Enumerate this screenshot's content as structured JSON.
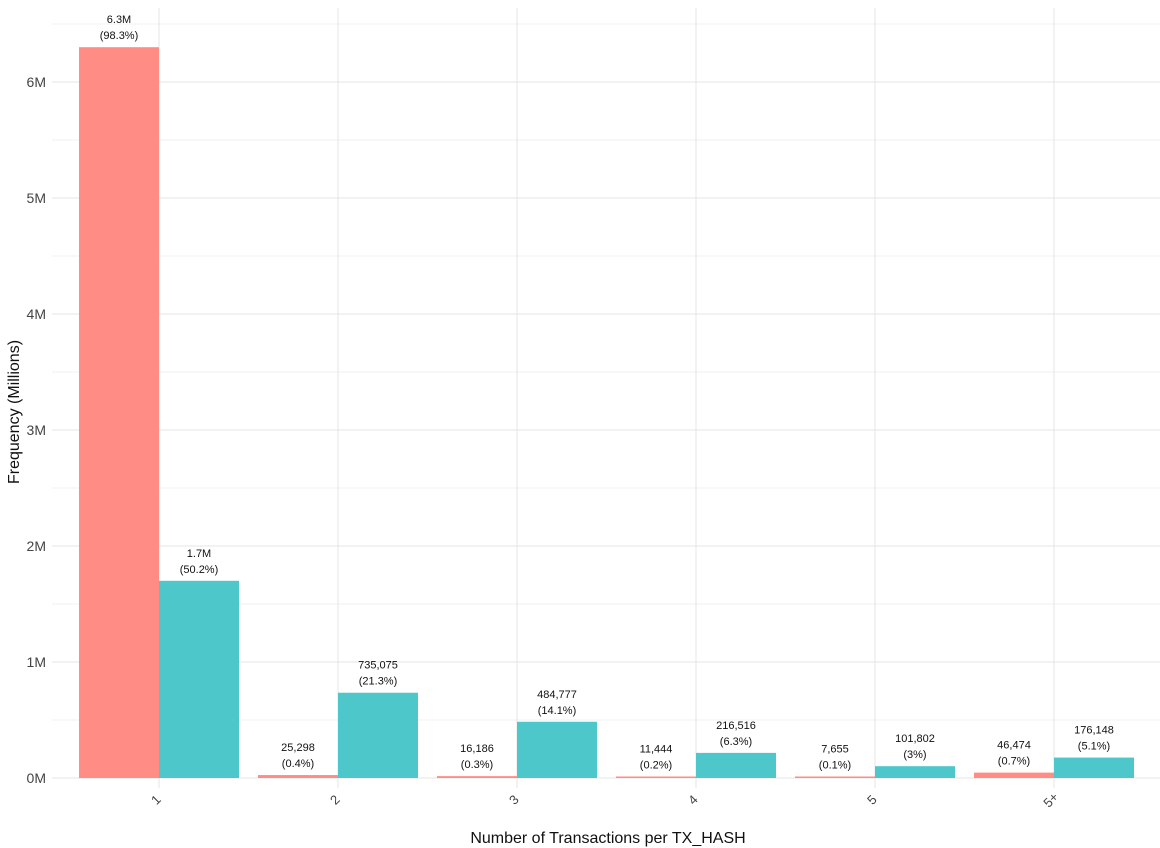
{
  "chart_data": {
    "type": "bar",
    "title": "",
    "xlabel": "Number of Transactions per TX_HASH",
    "ylabel": "Frequency (Millions)",
    "ylim": [
      0,
      6.6
    ],
    "y_ticks": [
      {
        "value": 0,
        "label": "0M"
      },
      {
        "value": 1,
        "label": "1M"
      },
      {
        "value": 2,
        "label": "2M"
      },
      {
        "value": 3,
        "label": "3M"
      },
      {
        "value": 4,
        "label": "4M"
      },
      {
        "value": 5,
        "label": "5M"
      },
      {
        "value": 6,
        "label": "6M"
      }
    ],
    "categories": [
      "1",
      "2",
      "3",
      "4",
      "5",
      "5+"
    ],
    "grid": true,
    "legend": "none",
    "series": [
      {
        "color": "#F8766D",
        "values": [
          6300000,
          25298,
          16186,
          11444,
          7655,
          46474
        ],
        "labels": [
          "6.3M",
          "25,298",
          "16,186",
          "11,444",
          "7,655",
          "46,474"
        ],
        "percents": [
          "(98.3%)",
          "(0.4%)",
          "(0.3%)",
          "(0.2%)",
          "(0.1%)",
          "(0.7%)"
        ]
      },
      {
        "color": "#4EC7CB",
        "values": [
          1700000,
          735075,
          484777,
          216516,
          101802,
          176148
        ],
        "labels": [
          "1.7M",
          "735,075",
          "484,777",
          "216,516",
          "101,802",
          "176,148"
        ],
        "percents": [
          "(50.2%)",
          "(21.3%)",
          "(14.1%)",
          "(6.3%)",
          "(3%)",
          "(5.1%)"
        ]
      }
    ]
  }
}
